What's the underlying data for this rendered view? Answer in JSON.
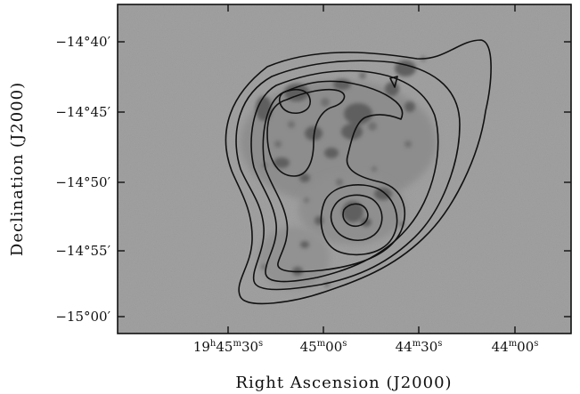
{
  "figure": {
    "ylabel": "Declination (J2000)",
    "xlabel": "Right Ascension (J2000)",
    "y_ticks": [
      {
        "deg": "−14",
        "arcmin": "40"
      },
      {
        "deg": "−14",
        "arcmin": "45"
      },
      {
        "deg": "−14",
        "arcmin": "50"
      },
      {
        "deg": "−14",
        "arcmin": "55"
      },
      {
        "deg": "−15",
        "arcmin": "00"
      }
    ],
    "x_ticks": [
      {
        "parts": [
          [
            "19",
            "h"
          ],
          [
            "45",
            "m"
          ],
          [
            "30",
            "s"
          ]
        ]
      },
      {
        "parts": [
          [
            "45",
            "m"
          ],
          [
            "00",
            "s"
          ]
        ]
      },
      {
        "parts": [
          [
            "44",
            "m"
          ],
          [
            "30",
            "s"
          ]
        ]
      },
      {
        "parts": [
          [
            "44",
            "m"
          ],
          [
            "00",
            "s"
          ]
        ]
      }
    ],
    "colors": {
      "image_background": "#9a9a9a",
      "contour": "#111111",
      "frame": "#111111"
    }
  }
}
